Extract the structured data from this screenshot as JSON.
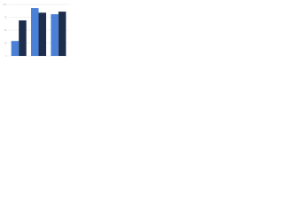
{
  "chart_data": {
    "type": "bar",
    "categories": [
      null,
      null,
      null
    ],
    "series": [
      {
        "color": "#4a80d6",
        "values": [
          29,
          93,
          81
        ]
      },
      {
        "color": "#1d2d4c",
        "values": [
          69,
          84,
          86
        ]
      }
    ],
    "ylim": [
      0,
      100
    ],
    "yticks": [
      0,
      25,
      50,
      75,
      100
    ],
    "grid": true
  }
}
